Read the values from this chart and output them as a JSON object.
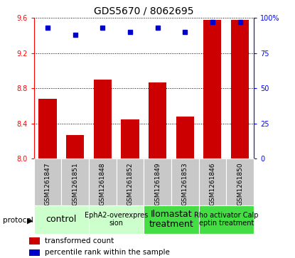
{
  "title": "GDS5670 / 8062695",
  "samples": [
    "GSM1261847",
    "GSM1261851",
    "GSM1261848",
    "GSM1261852",
    "GSM1261849",
    "GSM1261853",
    "GSM1261846",
    "GSM1261850"
  ],
  "bar_values": [
    8.68,
    8.27,
    8.9,
    8.45,
    8.87,
    8.48,
    9.58,
    9.58
  ],
  "dot_values": [
    93,
    88,
    93,
    90,
    93,
    90,
    97,
    97
  ],
  "ylim_left": [
    8.0,
    9.6
  ],
  "ylim_right": [
    0,
    100
  ],
  "yticks_left": [
    8.0,
    8.4,
    8.8,
    9.2,
    9.6
  ],
  "yticks_right": [
    0,
    25,
    50,
    75,
    100
  ],
  "bar_color": "#cc0000",
  "dot_color": "#0000cc",
  "groups": [
    {
      "label": "control",
      "indices": [
        0,
        1
      ],
      "color": "#ccffcc",
      "fontsize": 9
    },
    {
      "label": "EphA2-overexpres\nsion",
      "indices": [
        2,
        3
      ],
      "color": "#ccffcc",
      "fontsize": 7
    },
    {
      "label": "Ilomastat\ntreatment",
      "indices": [
        4,
        5
      ],
      "color": "#44dd44",
      "fontsize": 9
    },
    {
      "label": "Rho activator Calp\neptin treatment",
      "indices": [
        6,
        7
      ],
      "color": "#44dd44",
      "fontsize": 7
    }
  ],
  "legend_bar_label": "transformed count",
  "legend_dot_label": "percentile rank within the sample",
  "protocol_label": "protocol",
  "bg_color": "#ffffff",
  "sample_bg_color": "#c8c8c8",
  "title_fontsize": 10,
  "tick_fontsize": 7,
  "sample_fontsize": 6.5
}
